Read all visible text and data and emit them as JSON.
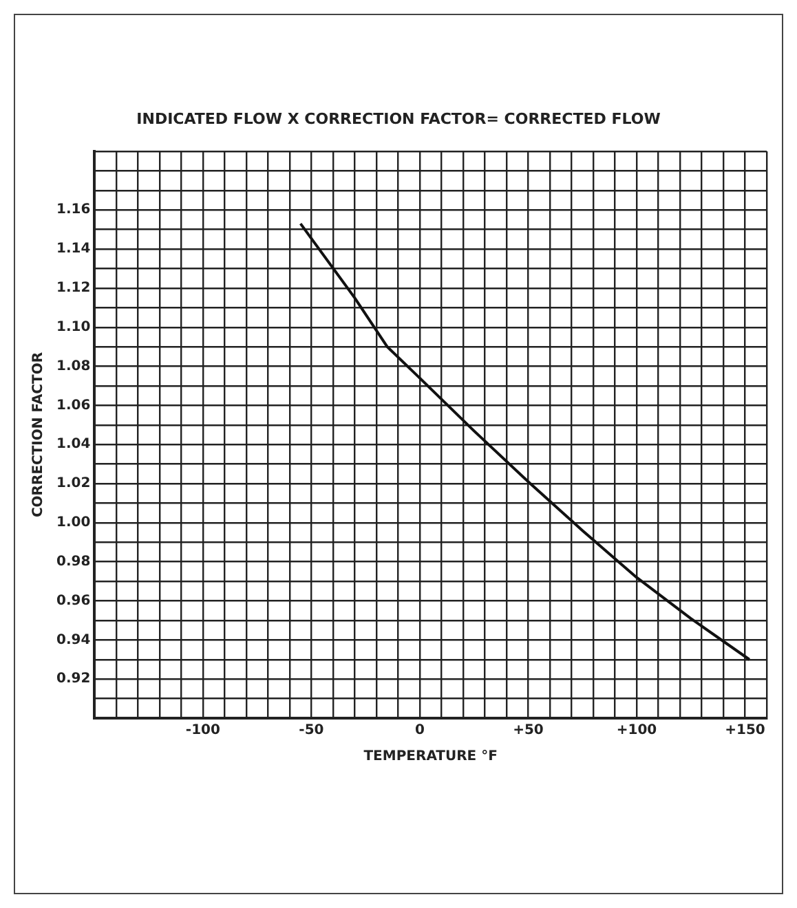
{
  "chart_data": {
    "type": "line",
    "title": "INDICATED FLOW X CORRECTION FACTOR= CORRECTED FLOW",
    "xlabel": "TEMPERATURE °F",
    "ylabel": "CORRECTION FACTOR",
    "x": [
      -55,
      -30,
      -15,
      0,
      25,
      50,
      75,
      100,
      125,
      152
    ],
    "series": [
      {
        "color": "#111111",
        "values": [
          1.153,
          1.115,
          1.09,
          1.074,
          1.047,
          1.021,
          0.996,
          0.972,
          0.951,
          0.93
        ]
      }
    ],
    "xlim": [
      -150,
      160
    ],
    "xticks": [
      {
        "value": -150,
        "label": null
      },
      {
        "value": -140,
        "label": null
      },
      {
        "value": -130,
        "label": null
      },
      {
        "value": -120,
        "label": null
      },
      {
        "value": -110,
        "label": null
      },
      -100,
      {
        "value": -90,
        "label": null
      },
      {
        "value": -80,
        "label": null
      },
      {
        "value": -70,
        "label": null
      },
      {
        "value": -60,
        "label": null
      },
      -50,
      {
        "value": -40,
        "label": null
      },
      {
        "value": -30,
        "label": null
      },
      {
        "value": -20,
        "label": null
      },
      {
        "value": -10,
        "label": null
      },
      0,
      {
        "value": 10,
        "label": null
      },
      {
        "value": 20,
        "label": null
      },
      {
        "value": 30,
        "label": null
      },
      {
        "value": 40,
        "label": null
      },
      {
        "value": 50,
        "label": "+50"
      },
      {
        "value": 60,
        "label": null
      },
      {
        "value": 70,
        "label": null
      },
      {
        "value": 80,
        "label": null
      },
      {
        "value": 90,
        "label": null
      },
      {
        "value": 100,
        "label": "+100"
      },
      {
        "value": 110,
        "label": null
      },
      {
        "value": 120,
        "label": null
      },
      {
        "value": 130,
        "label": null
      },
      {
        "value": 140,
        "label": null
      },
      {
        "value": 150,
        "label": "+150"
      },
      {
        "value": 160,
        "label": null
      }
    ],
    "ylim": [
      0.9,
      1.19
    ],
    "yticks": [
      {
        "value": 0.9,
        "label": null
      },
      {
        "value": 0.91,
        "label": null
      },
      0.92,
      {
        "value": 0.93,
        "label": null
      },
      0.94,
      {
        "value": 0.95,
        "label": null
      },
      0.96,
      {
        "value": 0.97,
        "label": null
      },
      0.98,
      {
        "value": 0.99,
        "label": null
      },
      {
        "value": 1,
        "label": "1.00"
      },
      {
        "value": 1.01,
        "label": null
      },
      1.02,
      {
        "value": 1.03,
        "label": null
      },
      1.04,
      {
        "value": 1.05,
        "label": null
      },
      1.06,
      {
        "value": 1.07,
        "label": null
      },
      1.08,
      {
        "value": 1.09,
        "label": null
      },
      {
        "value": 1.1,
        "label": "1.10"
      },
      {
        "value": 1.11,
        "label": null
      },
      1.12,
      {
        "value": 1.13,
        "label": null
      },
      1.14,
      {
        "value": 1.15,
        "label": null
      },
      1.16,
      {
        "value": 1.17,
        "label": null
      },
      {
        "value": 1.18,
        "label": null
      },
      {
        "value": 1.19,
        "label": null
      }
    ],
    "grid": true,
    "legend": false,
    "marker": "none",
    "line_style": "solid"
  }
}
